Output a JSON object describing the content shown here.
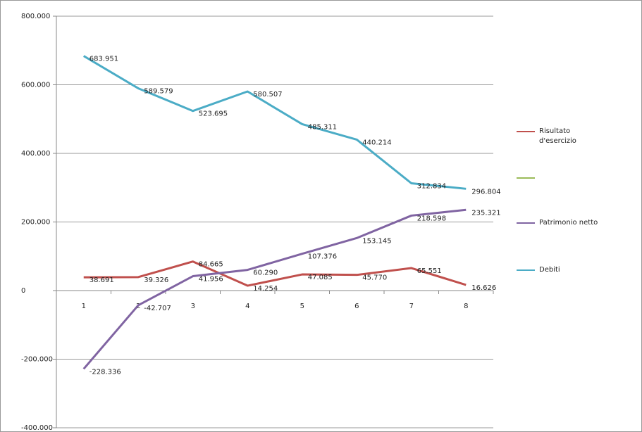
{
  "chart_data": {
    "type": "line",
    "categories": [
      1,
      2,
      3,
      4,
      5,
      6,
      7,
      8
    ],
    "series": [
      {
        "name": "Risultato d'esercizio",
        "color": "#c0504d",
        "values": [
          38691,
          39326,
          84665,
          14254,
          47085,
          45770,
          65551,
          16626
        ],
        "value_labels": [
          "38.691",
          "39.326",
          "84.665",
          "14.254",
          "47.085",
          "45.770",
          "65.551",
          "16.626"
        ]
      },
      {
        "name": null,
        "color": "#9bbb59",
        "values": [
          null,
          null,
          null,
          null,
          null,
          null,
          null,
          null
        ]
      },
      {
        "name": "Patrimonio netto",
        "color": "#8064a2",
        "values": [
          -228336,
          -42707,
          41956,
          60290,
          107376,
          153145,
          218598,
          235321
        ],
        "value_labels": [
          "-228.336",
          "-42.707",
          "41.956",
          "60.290",
          "107.376",
          "153.145",
          "218.598",
          "235.321"
        ]
      },
      {
        "name": "Debiti",
        "color": "#4bacc6",
        "values": [
          683951,
          589579,
          523695,
          580507,
          485311,
          440214,
          312834,
          296804
        ],
        "value_labels": [
          "683.951",
          "589.579",
          "523.695",
          "580.507",
          "485.311",
          "440.214",
          "312.834",
          "296.804"
        ]
      }
    ],
    "ylim": [
      -400000,
      800000
    ],
    "yticks": [
      {
        "value": -400000,
        "label": "-400.000"
      },
      {
        "value": -200000,
        "label": "-200.000"
      },
      0,
      {
        "value": 200000,
        "label": "200.000"
      },
      {
        "value": 400000,
        "label": "400.000"
      },
      {
        "value": 600000,
        "label": "600.000"
      },
      {
        "value": 800000,
        "label": "800.000"
      }
    ],
    "grid": true,
    "legend": "right"
  }
}
